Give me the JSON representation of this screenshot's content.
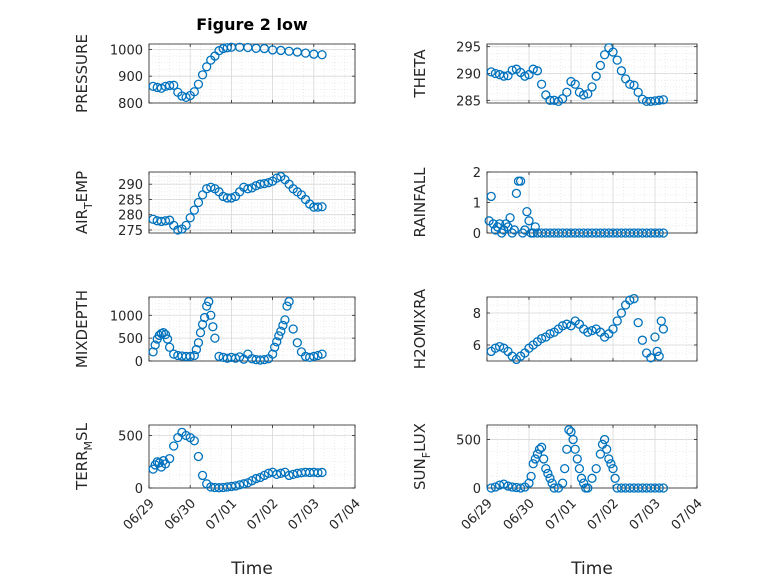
{
  "figure": {
    "title": "Figure 2 low"
  },
  "colors": {
    "marker": "#0072BD",
    "axis": "#262626",
    "grid": "#d9d9d9"
  },
  "chart_data": [
    {
      "type": "scatter",
      "ylabel": "PRESSURE",
      "title": "Figure 2 low",
      "ylim": [
        800,
        1020
      ],
      "yticks": [
        800,
        900,
        1000
      ],
      "ytick_labels": [
        "800",
        "900",
        "1000"
      ],
      "xlim": [
        0,
        5
      ],
      "xticks": [
        0,
        1,
        2,
        3,
        4,
        5
      ],
      "xtick_labels": [
        "06/29",
        "06/30",
        "07/01",
        "07/02",
        "07/03",
        "07/04"
      ],
      "show_xticklabels": false,
      "x": [
        0.1,
        0.2,
        0.3,
        0.4,
        0.5,
        0.6,
        0.7,
        0.8,
        0.9,
        1.0,
        1.1,
        1.2,
        1.3,
        1.4,
        1.5,
        1.6,
        1.7,
        1.8,
        1.9,
        2.0,
        2.2,
        2.4,
        2.6,
        2.8,
        3.0,
        3.2,
        3.4,
        3.6,
        3.8,
        4.0,
        4.2
      ],
      "y": [
        862,
        858,
        855,
        862,
        865,
        866,
        840,
        826,
        821,
        828,
        842,
        870,
        905,
        935,
        960,
        975,
        995,
        1003,
        1006,
        1008,
        1008,
        1007,
        1004,
        1003,
        998,
        996,
        993,
        990,
        986,
        982,
        980
      ]
    },
    {
      "type": "scatter",
      "ylabel": "THETA",
      "ylim": [
        284.5,
        295.5
      ],
      "yticks": [
        285,
        290,
        295
      ],
      "ytick_labels": [
        "285",
        "290",
        "295"
      ],
      "xlim": [
        0,
        5
      ],
      "xticks": [
        0,
        1,
        2,
        3,
        4,
        5
      ],
      "xtick_labels": [
        "06/29",
        "06/30",
        "07/01",
        "07/02",
        "07/03",
        "07/04"
      ],
      "show_xticklabels": false,
      "x": [
        0.1,
        0.2,
        0.3,
        0.4,
        0.5,
        0.6,
        0.7,
        0.8,
        0.9,
        1.0,
        1.1,
        1.2,
        1.3,
        1.4,
        1.5,
        1.6,
        1.7,
        1.8,
        1.9,
        2.0,
        2.1,
        2.2,
        2.3,
        2.4,
        2.5,
        2.6,
        2.7,
        2.8,
        2.9,
        3.0,
        3.1,
        3.2,
        3.3,
        3.4,
        3.5,
        3.6,
        3.7,
        3.8,
        3.9,
        4.0,
        4.1,
        4.2
      ],
      "y": [
        290.3,
        290.0,
        289.8,
        289.5,
        289.6,
        290.6,
        290.8,
        290.2,
        289.5,
        289.8,
        290.8,
        290.5,
        288.0,
        286.0,
        285.0,
        285.0,
        284.8,
        285.3,
        286.5,
        288.5,
        288.0,
        286.5,
        286.0,
        286.2,
        287.5,
        289.5,
        291.5,
        293.5,
        294.8,
        294.0,
        292.5,
        290.5,
        289.0,
        288.0,
        287.8,
        286.5,
        285.2,
        284.8,
        284.8,
        284.9,
        285.0,
        285.1
      ]
    },
    {
      "type": "scatter",
      "ylabel": "AIR_TEMP",
      "ylim": [
        274,
        294
      ],
      "yticks": [
        275,
        280,
        285,
        290
      ],
      "ytick_labels": [
        "275",
        "280",
        "285",
        "290"
      ],
      "xlim": [
        0,
        5
      ],
      "xticks": [
        0,
        1,
        2,
        3,
        4,
        5
      ],
      "xtick_labels": [
        "06/29",
        "06/30",
        "07/01",
        "07/02",
        "07/03",
        "07/04"
      ],
      "show_xticklabels": false,
      "x": [
        0.1,
        0.2,
        0.3,
        0.4,
        0.5,
        0.6,
        0.7,
        0.8,
        0.9,
        1.0,
        1.1,
        1.2,
        1.3,
        1.4,
        1.5,
        1.6,
        1.7,
        1.8,
        1.9,
        2.0,
        2.1,
        2.2,
        2.3,
        2.4,
        2.5,
        2.6,
        2.7,
        2.8,
        2.9,
        3.0,
        3.1,
        3.2,
        3.3,
        3.4,
        3.5,
        3.6,
        3.7,
        3.8,
        3.9,
        4.0,
        4.1,
        4.2
      ],
      "y": [
        278.5,
        278.0,
        277.8,
        278.0,
        278.2,
        276.5,
        275.0,
        275.3,
        276.5,
        279.0,
        281.5,
        284.0,
        286.5,
        288.5,
        289.0,
        288.5,
        287.5,
        286.0,
        285.5,
        285.5,
        286.0,
        287.5,
        289.0,
        288.5,
        288.8,
        289.5,
        290.0,
        290.2,
        290.5,
        291.0,
        292.0,
        292.5,
        291.5,
        290.0,
        288.5,
        287.5,
        286.5,
        285.0,
        283.5,
        282.5,
        282.5,
        282.6
      ]
    },
    {
      "type": "scatter",
      "ylabel": "RAINFALL",
      "ylim": [
        0,
        2
      ],
      "yticks": [
        0,
        1,
        2
      ],
      "ytick_labels": [
        "0",
        "1",
        "2"
      ],
      "xlim": [
        0,
        5
      ],
      "xticks": [
        0,
        1,
        2,
        3,
        4,
        5
      ],
      "xtick_labels": [
        "06/29",
        "06/30",
        "07/01",
        "07/02",
        "07/03",
        "07/04"
      ],
      "show_xticklabels": false,
      "x": [
        0.05,
        0.1,
        0.15,
        0.2,
        0.25,
        0.3,
        0.35,
        0.4,
        0.45,
        0.5,
        0.55,
        0.6,
        0.65,
        0.7,
        0.75,
        0.8,
        0.85,
        0.9,
        0.95,
        1.0,
        1.05,
        1.1,
        1.15,
        1.2,
        1.3,
        1.4,
        1.5,
        1.6,
        1.7,
        1.8,
        1.9,
        2.0,
        2.1,
        2.2,
        2.3,
        2.4,
        2.5,
        2.6,
        2.7,
        2.8,
        2.9,
        3.0,
        3.1,
        3.2,
        3.3,
        3.4,
        3.5,
        3.6,
        3.7,
        3.8,
        3.9,
        4.0,
        4.1,
        4.2
      ],
      "y": [
        0.4,
        1.2,
        0.3,
        0.1,
        0.2,
        0.3,
        0.0,
        0.1,
        0.3,
        0.2,
        0.5,
        0.0,
        0.1,
        1.3,
        1.7,
        1.7,
        0.0,
        0.1,
        0.7,
        0.4,
        0.0,
        0.0,
        0.2,
        0.0,
        0,
        0,
        0,
        0,
        0,
        0,
        0,
        0,
        0,
        0,
        0,
        0,
        0,
        0,
        0,
        0,
        0,
        0,
        0,
        0,
        0,
        0,
        0,
        0,
        0,
        0,
        0,
        0,
        0,
        0
      ]
    },
    {
      "type": "scatter",
      "ylabel": "MIXDEPTH",
      "ylim": [
        0,
        1400
      ],
      "yticks": [
        0,
        500,
        1000
      ],
      "ytick_labels": [
        "0",
        "500",
        "1000"
      ],
      "xlim": [
        0,
        5
      ],
      "xticks": [
        0,
        1,
        2,
        3,
        4,
        5
      ],
      "xtick_labels": [
        "06/29",
        "06/30",
        "07/01",
        "07/02",
        "07/03",
        "07/04"
      ],
      "show_xticklabels": false,
      "x": [
        0.1,
        0.15,
        0.2,
        0.25,
        0.3,
        0.35,
        0.4,
        0.45,
        0.5,
        0.6,
        0.7,
        0.8,
        0.9,
        1.0,
        1.1,
        1.15,
        1.2,
        1.25,
        1.3,
        1.35,
        1.4,
        1.45,
        1.5,
        1.55,
        1.6,
        1.7,
        1.8,
        1.9,
        2.0,
        2.1,
        2.2,
        2.3,
        2.4,
        2.5,
        2.6,
        2.7,
        2.8,
        2.9,
        3.0,
        3.05,
        3.1,
        3.15,
        3.2,
        3.25,
        3.3,
        3.35,
        3.4,
        3.5,
        3.6,
        3.7,
        3.8,
        3.9,
        4.0,
        4.1,
        4.2
      ],
      "y": [
        200,
        350,
        480,
        560,
        600,
        620,
        580,
        480,
        300,
        150,
        120,
        110,
        100,
        100,
        120,
        250,
        400,
        620,
        800,
        950,
        1200,
        1300,
        1000,
        750,
        500,
        100,
        80,
        60,
        80,
        60,
        90,
        40,
        150,
        50,
        30,
        20,
        30,
        50,
        150,
        300,
        420,
        550,
        650,
        780,
        900,
        1200,
        1300,
        700,
        400,
        200,
        100,
        80,
        100,
        120,
        150
      ]
    },
    {
      "type": "scatter",
      "ylabel": "H2OMIXRA",
      "ylim": [
        5,
        9
      ],
      "yticks": [
        6,
        8
      ],
      "ytick_labels": [
        "6",
        "8"
      ],
      "xlim": [
        0,
        5
      ],
      "xticks": [
        0,
        1,
        2,
        3,
        4,
        5
      ],
      "xtick_labels": [
        "06/29",
        "06/30",
        "07/01",
        "07/02",
        "07/03",
        "07/04"
      ],
      "show_xticklabels": false,
      "x": [
        0.1,
        0.2,
        0.3,
        0.4,
        0.5,
        0.6,
        0.7,
        0.8,
        0.9,
        1.0,
        1.1,
        1.2,
        1.3,
        1.4,
        1.5,
        1.6,
        1.7,
        1.8,
        1.9,
        2.0,
        2.1,
        2.2,
        2.3,
        2.4,
        2.5,
        2.6,
        2.7,
        2.8,
        2.9,
        3.0,
        3.1,
        3.2,
        3.3,
        3.4,
        3.5,
        3.6,
        3.7,
        3.8,
        3.9,
        4.0,
        4.05,
        4.1,
        4.15,
        4.2
      ],
      "y": [
        5.6,
        5.8,
        5.9,
        5.8,
        5.6,
        5.3,
        5.1,
        5.3,
        5.5,
        5.8,
        6.0,
        6.2,
        6.4,
        6.5,
        6.7,
        6.8,
        7.0,
        7.2,
        7.3,
        7.2,
        7.5,
        7.3,
        7.0,
        6.8,
        6.9,
        7.0,
        6.8,
        6.5,
        6.7,
        7.0,
        7.5,
        8.0,
        8.5,
        8.8,
        8.9,
        7.4,
        6.3,
        5.5,
        5.2,
        6.5,
        5.6,
        5.3,
        7.5,
        7.0
      ]
    },
    {
      "type": "scatter",
      "ylabel": "TERR_MSL",
      "ylim": [
        0,
        600
      ],
      "yticks": [
        0,
        500
      ],
      "ytick_labels": [
        "0",
        "500"
      ],
      "xlim": [
        0,
        5
      ],
      "xticks": [
        0,
        1,
        2,
        3,
        4,
        5
      ],
      "xtick_labels": [
        "06/29",
        "06/30",
        "07/01",
        "07/02",
        "07/03",
        "07/04"
      ],
      "show_xticklabels": true,
      "x": [
        0.1,
        0.15,
        0.2,
        0.25,
        0.3,
        0.35,
        0.4,
        0.5,
        0.6,
        0.7,
        0.8,
        0.9,
        1.0,
        1.1,
        1.2,
        1.3,
        1.4,
        1.5,
        1.6,
        1.7,
        1.8,
        1.9,
        2.0,
        2.1,
        2.2,
        2.3,
        2.4,
        2.5,
        2.6,
        2.7,
        2.8,
        2.9,
        3.0,
        3.1,
        3.2,
        3.3,
        3.4,
        3.5,
        3.6,
        3.7,
        3.8,
        3.9,
        4.0,
        4.1,
        4.2
      ],
      "y": [
        180,
        220,
        250,
        240,
        200,
        260,
        230,
        280,
        400,
        480,
        530,
        500,
        480,
        450,
        300,
        120,
        40,
        10,
        5,
        3,
        5,
        10,
        15,
        20,
        30,
        40,
        50,
        70,
        90,
        100,
        120,
        140,
        150,
        130,
        140,
        150,
        120,
        130,
        140,
        145,
        150,
        148,
        150,
        145,
        148
      ]
    },
    {
      "type": "scatter",
      "ylabel": "SUN_FLUX",
      "xlabel": "Time",
      "ylim": [
        0,
        650
      ],
      "yticks": [
        0,
        500
      ],
      "ytick_labels": [
        "0",
        "500"
      ],
      "xlim": [
        0,
        5
      ],
      "xticks": [
        0,
        1,
        2,
        3,
        4,
        5
      ],
      "xtick_labels": [
        "06/29",
        "06/30",
        "07/01",
        "07/02",
        "07/03",
        "07/04"
      ],
      "show_xticklabels": true,
      "x": [
        0.1,
        0.2,
        0.3,
        0.4,
        0.5,
        0.6,
        0.7,
        0.8,
        0.9,
        1.0,
        1.05,
        1.1,
        1.15,
        1.2,
        1.25,
        1.3,
        1.35,
        1.4,
        1.45,
        1.5,
        1.55,
        1.6,
        1.7,
        1.8,
        1.85,
        1.9,
        1.95,
        2.0,
        2.05,
        2.1,
        2.15,
        2.2,
        2.25,
        2.3,
        2.35,
        2.4,
        2.5,
        2.6,
        2.7,
        2.75,
        2.8,
        2.85,
        2.9,
        2.95,
        3.0,
        3.05,
        3.1,
        3.2,
        3.3,
        3.4,
        3.5,
        3.6,
        3.7,
        3.8,
        3.9,
        4.0,
        4.1,
        4.2
      ],
      "y": [
        0,
        10,
        30,
        40,
        20,
        10,
        5,
        0,
        10,
        50,
        120,
        250,
        300,
        350,
        400,
        420,
        300,
        200,
        150,
        100,
        50,
        0,
        0,
        50,
        200,
        400,
        600,
        580,
        500,
        400,
        300,
        200,
        100,
        50,
        0,
        0,
        100,
        200,
        350,
        450,
        500,
        400,
        300,
        250,
        200,
        100,
        0,
        0,
        0,
        0,
        0,
        0,
        0,
        0,
        0,
        0,
        0,
        0
      ]
    }
  ]
}
